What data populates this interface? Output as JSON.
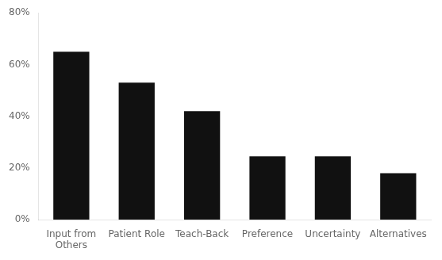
{
  "chart_data": {
    "type": "bar",
    "categories": [
      "Input from\nOthers",
      "Patient Role",
      "Teach-Back",
      "Preference",
      "Uncertainty",
      "Alternatives"
    ],
    "values": [
      0.65,
      0.53,
      0.42,
      0.245,
      0.245,
      0.18
    ],
    "color": "#111111",
    "ylim": [
      0,
      0.8
    ],
    "yticks": [
      {
        "value": 0,
        "label": "0%"
      },
      {
        "value": 0.2,
        "label": "20%"
      },
      {
        "value": 0.4,
        "label": "40%"
      },
      {
        "value": 0.6,
        "label": "60%"
      },
      {
        "value": 0.8,
        "label": "80%"
      }
    ],
    "grid": false
  }
}
